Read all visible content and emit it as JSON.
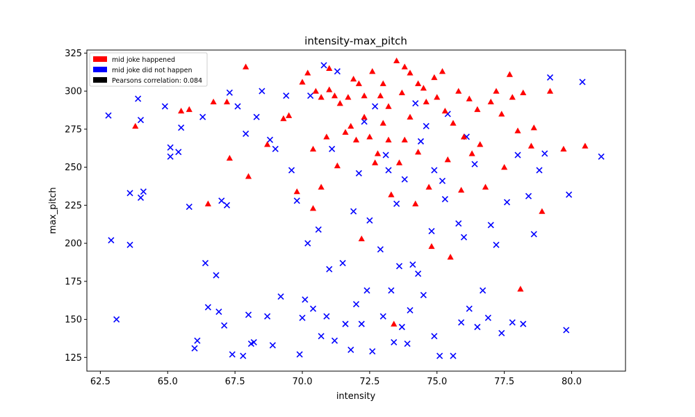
{
  "chart_data": {
    "type": "scatter",
    "title": "intensity-max_pitch",
    "xlabel": "intensity",
    "ylabel": "max_pitch",
    "xlim": [
      62.0,
      82.0
    ],
    "ylim": [
      116,
      327
    ],
    "xticks": [
      "62.5",
      "65.0",
      "67.5",
      "70.0",
      "72.5",
      "75.0",
      "77.5",
      "80.0"
    ],
    "xtick_values": [
      62.5,
      65.0,
      67.5,
      70.0,
      72.5,
      75.0,
      77.5,
      80.0
    ],
    "yticks": [
      "125",
      "150",
      "175",
      "200",
      "225",
      "250",
      "275",
      "300",
      "325"
    ],
    "ytick_values": [
      125,
      150,
      175,
      200,
      225,
      250,
      275,
      300,
      325
    ],
    "grid": false,
    "legend_position": "top-left",
    "legend": [
      {
        "label": "mid joke happened",
        "color": "#ff0000"
      },
      {
        "label": "mid joke did not happen",
        "color": "#0000ff"
      },
      {
        "label": "Pearsons correlation: 0.084",
        "color": "#000000"
      }
    ],
    "series": [
      {
        "name": "mid joke happened",
        "marker": "triangle",
        "color": "#ff0000",
        "points": [
          [
            63.8,
            277
          ],
          [
            65.5,
            287
          ],
          [
            65.8,
            288
          ],
          [
            66.5,
            226
          ],
          [
            66.7,
            293
          ],
          [
            67.2,
            293
          ],
          [
            67.3,
            256
          ],
          [
            67.9,
            316
          ],
          [
            68.0,
            244
          ],
          [
            68.7,
            265
          ],
          [
            69.3,
            282
          ],
          [
            69.8,
            234
          ],
          [
            70.0,
            306
          ],
          [
            70.2,
            312
          ],
          [
            70.4,
            262
          ],
          [
            70.4,
            223
          ],
          [
            70.5,
            300
          ],
          [
            70.7,
            296
          ],
          [
            70.7,
            237
          ],
          [
            70.9,
            270
          ],
          [
            71.0,
            301
          ],
          [
            71.0,
            315
          ],
          [
            71.2,
            297
          ],
          [
            71.3,
            251
          ],
          [
            71.4,
            292
          ],
          [
            71.6,
            273
          ],
          [
            71.7,
            296
          ],
          [
            71.8,
            277
          ],
          [
            71.9,
            308
          ],
          [
            72.0,
            268
          ],
          [
            72.1,
            305
          ],
          [
            72.2,
            203
          ],
          [
            72.3,
            283
          ],
          [
            72.3,
            297
          ],
          [
            72.5,
            270
          ],
          [
            72.6,
            313
          ],
          [
            72.7,
            253
          ],
          [
            72.9,
            297
          ],
          [
            73.0,
            305
          ],
          [
            73.0,
            279
          ],
          [
            73.2,
            268
          ],
          [
            73.2,
            290
          ],
          [
            73.3,
            232
          ],
          [
            73.5,
            320
          ],
          [
            73.6,
            253
          ],
          [
            73.7,
            299
          ],
          [
            73.8,
            268
          ],
          [
            73.8,
            316
          ],
          [
            74.0,
            283
          ],
          [
            74.0,
            312
          ],
          [
            74.2,
            226
          ],
          [
            74.3,
            260
          ],
          [
            74.3,
            305
          ],
          [
            74.5,
            302
          ],
          [
            74.7,
            237
          ],
          [
            74.8,
            198
          ],
          [
            74.9,
            309
          ],
          [
            75.0,
            296
          ],
          [
            75.2,
            313
          ],
          [
            75.3,
            287
          ],
          [
            75.4,
            255
          ],
          [
            75.5,
            191
          ],
          [
            75.6,
            279
          ],
          [
            75.8,
            300
          ],
          [
            76.0,
            270
          ],
          [
            76.2,
            295
          ],
          [
            76.3,
            259
          ],
          [
            76.5,
            288
          ],
          [
            76.6,
            265
          ],
          [
            76.8,
            237
          ],
          [
            77.0,
            293
          ],
          [
            77.2,
            300
          ],
          [
            77.4,
            285
          ],
          [
            77.5,
            250
          ],
          [
            77.7,
            311
          ],
          [
            77.8,
            296
          ],
          [
            78.0,
            274
          ],
          [
            78.1,
            170
          ],
          [
            78.2,
            299
          ],
          [
            78.5,
            264
          ],
          [
            78.6,
            276
          ],
          [
            78.9,
            221
          ],
          [
            79.2,
            300
          ],
          [
            79.7,
            262
          ],
          [
            80.5,
            264
          ],
          [
            73.4,
            147
          ],
          [
            69.5,
            284
          ],
          [
            72.8,
            259
          ],
          [
            75.9,
            235
          ],
          [
            74.6,
            293
          ]
        ]
      },
      {
        "name": "mid joke did not happen",
        "marker": "x",
        "color": "#0000ff",
        "points": [
          [
            62.8,
            284
          ],
          [
            62.9,
            202
          ],
          [
            63.1,
            150
          ],
          [
            63.6,
            233
          ],
          [
            63.6,
            199
          ],
          [
            63.9,
            295
          ],
          [
            64.0,
            281
          ],
          [
            64.0,
            230
          ],
          [
            64.1,
            234
          ],
          [
            64.9,
            290
          ],
          [
            65.1,
            263
          ],
          [
            65.1,
            257
          ],
          [
            65.4,
            260
          ],
          [
            65.5,
            276
          ],
          [
            65.8,
            224
          ],
          [
            66.0,
            131
          ],
          [
            66.1,
            136
          ],
          [
            66.3,
            283
          ],
          [
            66.4,
            187
          ],
          [
            66.5,
            158
          ],
          [
            66.8,
            179
          ],
          [
            66.9,
            155
          ],
          [
            67.0,
            228
          ],
          [
            67.1,
            146
          ],
          [
            67.2,
            225
          ],
          [
            67.3,
            299
          ],
          [
            67.4,
            127
          ],
          [
            67.6,
            290
          ],
          [
            67.8,
            126
          ],
          [
            67.9,
            272
          ],
          [
            68.0,
            153
          ],
          [
            68.1,
            134
          ],
          [
            68.2,
            135
          ],
          [
            68.3,
            283
          ],
          [
            68.5,
            300
          ],
          [
            68.7,
            152
          ],
          [
            68.8,
            268
          ],
          [
            68.9,
            133
          ],
          [
            69.0,
            262
          ],
          [
            69.2,
            165
          ],
          [
            69.4,
            297
          ],
          [
            69.6,
            248
          ],
          [
            69.8,
            228
          ],
          [
            69.9,
            127
          ],
          [
            70.0,
            151
          ],
          [
            70.1,
            163
          ],
          [
            70.2,
            200
          ],
          [
            70.4,
            157
          ],
          [
            70.6,
            209
          ],
          [
            70.7,
            139
          ],
          [
            70.8,
            317
          ],
          [
            70.9,
            152
          ],
          [
            71.0,
            183
          ],
          [
            71.2,
            136
          ],
          [
            71.3,
            313
          ],
          [
            71.5,
            187
          ],
          [
            71.6,
            147
          ],
          [
            71.8,
            130
          ],
          [
            71.9,
            221
          ],
          [
            72.0,
            160
          ],
          [
            72.1,
            246
          ],
          [
            72.2,
            147
          ],
          [
            72.4,
            169
          ],
          [
            72.5,
            215
          ],
          [
            72.6,
            129
          ],
          [
            72.7,
            290
          ],
          [
            72.9,
            196
          ],
          [
            73.0,
            152
          ],
          [
            73.2,
            248
          ],
          [
            73.3,
            169
          ],
          [
            73.4,
            135
          ],
          [
            73.6,
            185
          ],
          [
            73.7,
            145
          ],
          [
            73.8,
            242
          ],
          [
            73.9,
            134
          ],
          [
            74.0,
            156
          ],
          [
            74.1,
            186
          ],
          [
            74.3,
            180
          ],
          [
            74.4,
            267
          ],
          [
            74.5,
            166
          ],
          [
            74.6,
            277
          ],
          [
            74.8,
            208
          ],
          [
            74.9,
            139
          ],
          [
            75.1,
            126
          ],
          [
            75.2,
            241
          ],
          [
            75.4,
            285
          ],
          [
            75.6,
            126
          ],
          [
            75.8,
            213
          ],
          [
            75.9,
            148
          ],
          [
            76.0,
            204
          ],
          [
            76.2,
            157
          ],
          [
            76.4,
            252
          ],
          [
            76.5,
            145
          ],
          [
            76.7,
            169
          ],
          [
            76.9,
            151
          ],
          [
            77.0,
            212
          ],
          [
            77.2,
            199
          ],
          [
            77.4,
            141
          ],
          [
            77.6,
            227
          ],
          [
            77.8,
            148
          ],
          [
            78.0,
            258
          ],
          [
            78.2,
            147
          ],
          [
            78.4,
            231
          ],
          [
            78.6,
            206
          ],
          [
            78.8,
            248
          ],
          [
            79.0,
            259
          ],
          [
            79.2,
            309
          ],
          [
            79.8,
            143
          ],
          [
            79.9,
            232
          ],
          [
            80.4,
            306
          ],
          [
            81.1,
            257
          ],
          [
            70.3,
            297
          ],
          [
            71.1,
            262
          ],
          [
            72.3,
            280
          ],
          [
            73.1,
            258
          ],
          [
            74.2,
            292
          ],
          [
            75.3,
            229
          ],
          [
            76.1,
            270
          ],
          [
            74.9,
            248
          ],
          [
            73.5,
            226
          ]
        ]
      }
    ]
  }
}
